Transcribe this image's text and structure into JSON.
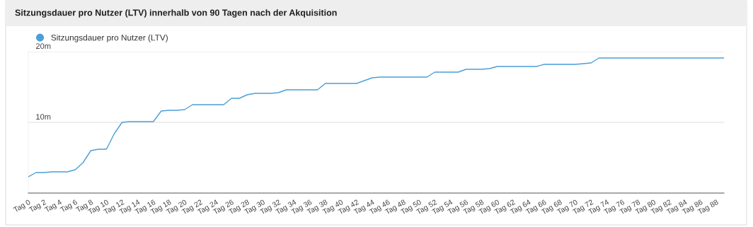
{
  "chart_data": {
    "type": "line",
    "title": "Sitzungsdauer pro Nutzer (LTV) innerhalb von 90 Tagen nach der Akquisition",
    "categories": [
      "Tag 0",
      null,
      "Tag 2",
      null,
      "Tag 4",
      null,
      "Tag 6",
      null,
      "Tag 8",
      null,
      "Tag 10",
      null,
      "Tag 12",
      null,
      "Tag 14",
      null,
      "Tag 16",
      null,
      "Tag 18",
      null,
      "Tag 20",
      null,
      "Tag 22",
      null,
      "Tag 24",
      null,
      "Tag 26",
      null,
      "Tag 28",
      null,
      "Tag 30",
      null,
      "Tag 32",
      null,
      "Tag 34",
      null,
      "Tag 36",
      null,
      "Tag 38",
      null,
      "Tag 40",
      null,
      "Tag 42",
      null,
      "Tag 44",
      null,
      "Tag 46",
      null,
      "Tag 48",
      null,
      "Tag 50",
      null,
      "Tag 52",
      null,
      "Tag 54",
      null,
      "Tag 56",
      null,
      "Tag 58",
      null,
      "Tag 60",
      null,
      "Tag 62",
      null,
      "Tag 64",
      null,
      "Tag 66",
      null,
      "Tag 68",
      null,
      "Tag 70",
      null,
      "Tag 72",
      null,
      "Tag 74",
      null,
      "Tag 76",
      null,
      "Tag 78",
      null,
      "Tag 80",
      null,
      "Tag 82",
      null,
      "Tag 84",
      null,
      "Tag 86",
      null,
      "Tag 88",
      null
    ],
    "series": [
      {
        "name": "Sitzungsdauer pro Nutzer (LTV)",
        "color": "#4a9fd8",
        "values": [
          2.3,
          2.9,
          2.9,
          3.0,
          3.0,
          3.0,
          3.3,
          4.3,
          6.0,
          6.2,
          6.2,
          8.4,
          10.0,
          10.1,
          10.1,
          10.1,
          10.1,
          11.6,
          11.7,
          11.7,
          11.8,
          12.5,
          12.5,
          12.5,
          12.5,
          12.5,
          13.4,
          13.4,
          13.9,
          14.1,
          14.1,
          14.1,
          14.2,
          14.6,
          14.6,
          14.6,
          14.6,
          14.6,
          15.5,
          15.5,
          15.5,
          15.5,
          15.5,
          15.9,
          16.3,
          16.4,
          16.4,
          16.4,
          16.4,
          16.4,
          16.4,
          16.4,
          17.1,
          17.1,
          17.1,
          17.1,
          17.5,
          17.5,
          17.5,
          17.6,
          17.9,
          17.9,
          17.9,
          17.9,
          17.9,
          17.9,
          18.2,
          18.2,
          18.2,
          18.2,
          18.2,
          18.3,
          18.4,
          19.1,
          19.1,
          19.1,
          19.1,
          19.1,
          19.1,
          19.1,
          19.1,
          19.1,
          19.1,
          19.1,
          19.1,
          19.1,
          19.1,
          19.1,
          19.1,
          19.1
        ]
      }
    ],
    "ylim": [
      0,
      20
    ],
    "yticks": [
      {
        "value": 10,
        "label": "10m"
      },
      {
        "value": 20,
        "label": "20m"
      }
    ],
    "grid": "y",
    "legend": "top left",
    "marker": "none",
    "line_style": "solid"
  }
}
